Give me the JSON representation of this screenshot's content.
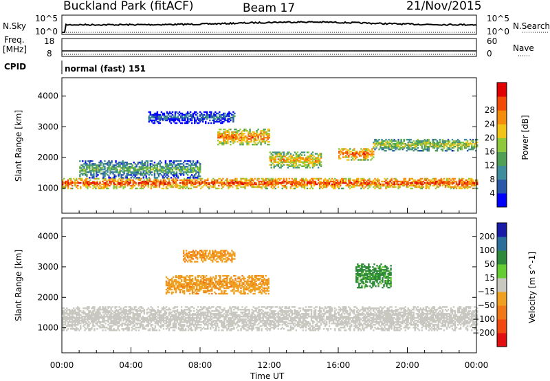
{
  "header": {
    "station": "Buckland Park (fitACF)",
    "beam": "Beam 17",
    "date": "21/Nov/2015"
  },
  "noise_panel": {
    "left_label": "N.Sky",
    "left_ticks": [
      "10^5",
      "10^0"
    ],
    "right_label": "N.Search",
    "right_ticks": [
      "10^5",
      "10^0"
    ]
  },
  "freq_panel": {
    "left_label_line1": "Freq.",
    "left_label_line2": "[MHz]",
    "left_ticks": [
      "18",
      "8"
    ],
    "right_label": "Nave",
    "right_ticks": [
      "60",
      "0"
    ]
  },
  "cpid_panel": {
    "label": "CPID",
    "mode": "normal (fast) 151"
  },
  "time_axis": {
    "label": "Time UT",
    "ticks": [
      "00:00",
      "04:00",
      "08:00",
      "12:00",
      "16:00",
      "20:00",
      "00:00"
    ]
  },
  "chart_data": [
    {
      "type": "heatmap",
      "name": "power",
      "ylabel": "Slant Range [km]",
      "xlim_hours": [
        0,
        24
      ],
      "ylim_km": [
        180,
        4600
      ],
      "yticks": [
        "1000",
        "2000",
        "3000",
        "4000"
      ],
      "colorbar": {
        "label": "Power [dB]",
        "ticks": [
          "4",
          "8",
          "12",
          "16",
          "20",
          "24",
          "28"
        ],
        "colors": [
          "#0000ff",
          "#2a58a8",
          "#3f8c9c",
          "#4f9f56",
          "#8dc93a",
          "#f2c418",
          "#f58c0c",
          "#f04c06",
          "#e00000"
        ]
      },
      "echo_bands": [
        {
          "hours": [
            0,
            24
          ],
          "center_km": 1150,
          "halfwidth_km": 180,
          "db": 27
        },
        {
          "hours": [
            1,
            8
          ],
          "center_km": 1600,
          "halfwidth_km": 280,
          "db": 14
        },
        {
          "hours": [
            9,
            12
          ],
          "center_km": 2650,
          "halfwidth_km": 250,
          "db": 25
        },
        {
          "hours": [
            12,
            15
          ],
          "center_km": 1900,
          "halfwidth_km": 250,
          "db": 22
        },
        {
          "hours": [
            16,
            18
          ],
          "center_km": 2100,
          "halfwidth_km": 200,
          "db": 26
        },
        {
          "hours": [
            18,
            24
          ],
          "center_km": 2400,
          "halfwidth_km": 200,
          "db": 18
        },
        {
          "hours": [
            5,
            10
          ],
          "center_km": 3300,
          "halfwidth_km": 200,
          "db": 8
        }
      ]
    },
    {
      "type": "heatmap",
      "name": "velocity",
      "ylabel": "Slant Range [km]",
      "xlim_hours": [
        0,
        24
      ],
      "ylim_km": [
        180,
        4600
      ],
      "yticks": [
        "1000",
        "2000",
        "3000",
        "4000"
      ],
      "colorbar": {
        "label": "Velocity [m s^-1]",
        "ticks": [
          "200",
          "100",
          "50",
          "15",
          "−15",
          "−50",
          "−100",
          "−200"
        ],
        "colors": [
          "#1a1aa8",
          "#2c6e9a",
          "#2e8a3a",
          "#66cc33",
          "#c8c8c0",
          "#f0a020",
          "#f07818",
          "#f04a10",
          "#e01010"
        ]
      },
      "echo_bands": [
        {
          "hours": [
            0,
            24
          ],
          "center_km": 1300,
          "halfwidth_km": 400,
          "ms": 0
        },
        {
          "hours": [
            6,
            12
          ],
          "center_km": 2400,
          "halfwidth_km": 300,
          "ms": -40
        },
        {
          "hours": [
            7,
            10
          ],
          "center_km": 3350,
          "halfwidth_km": 200,
          "ms": -40
        },
        {
          "hours": [
            17,
            19
          ],
          "center_km": 2700,
          "halfwidth_km": 400,
          "ms": 60
        }
      ]
    }
  ]
}
